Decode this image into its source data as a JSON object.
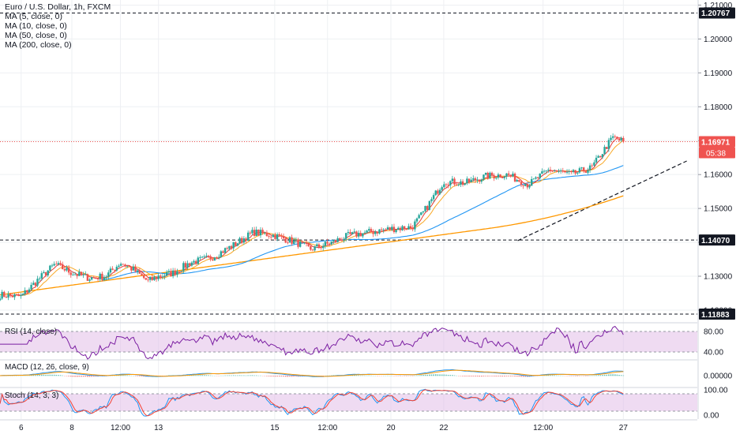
{
  "header": {
    "symbol_title": "Euro / U.S. Dollar, 1h, FXCM",
    "indicators": [
      "MA (5, close, 0)",
      "MA (10, close, 0)",
      "MA (50, close, 0)",
      "MA (200, close, 0)"
    ]
  },
  "subpanes": {
    "rsi_label": "RSI (14, close)",
    "macd_label": "MACD (12, 26, close, 9)",
    "stoch_label": "Stoch (14, 3, 3)"
  },
  "price_badges": {
    "resistance": "1.20767",
    "current": "1.16971",
    "countdown": "05:38",
    "support_mid": "1.14070",
    "support_low": "1.11883"
  },
  "colors": {
    "up": "#26a69a",
    "down": "#ef5350",
    "ma5": "#e53935",
    "ma10": "#f9a825",
    "ma50": "#2196f3",
    "ma200": "#ff9800",
    "rsi": "#7b1fa2",
    "macd_line": "#2196f3",
    "macd_signal": "#ff9800",
    "stoch_k": "#2196f3",
    "stoch_d": "#f44336",
    "band_fill": "#e1bee7",
    "current_line": "#ef5350"
  },
  "chart_data": {
    "type": "candlestick",
    "title": "Euro / U.S. Dollar, 1h, FXCM",
    "y_tick_labels": [
      "1.21000",
      "1.20000",
      "1.19000",
      "1.18000",
      "1.17000",
      "1.16000",
      "1.15000",
      "1.14000",
      "1.13000",
      "1.12000"
    ],
    "y_ticks": [
      1.21,
      1.2,
      1.19,
      1.18,
      1.17,
      1.16,
      1.15,
      1.14,
      1.13,
      1.12
    ],
    "ylim": [
      1.1165,
      1.2115
    ],
    "x_tick_labels": [
      "6",
      "8",
      "12:00",
      "13",
      "15",
      "12:00",
      "20",
      "22",
      "12:00",
      "27"
    ],
    "x_ticks": [
      0.1,
      0.34,
      0.57,
      0.75,
      1.3,
      1.55,
      1.85,
      2.1,
      2.57,
      2.95
    ],
    "xlim": [
      0,
      3.3
    ],
    "grid": true,
    "horizontal_levels": [
      1.20767,
      1.1407,
      1.11883
    ],
    "current_price": 1.16971,
    "trendline": [
      [
        2.45,
        1.1405
      ],
      [
        3.25,
        1.164
      ]
    ],
    "anchor_closes": [
      [
        0.0,
        1.1245
      ],
      [
        0.1,
        1.124
      ],
      [
        0.18,
        1.129
      ],
      [
        0.26,
        1.1335
      ],
      [
        0.34,
        1.131
      ],
      [
        0.42,
        1.1295
      ],
      [
        0.5,
        1.13
      ],
      [
        0.57,
        1.134
      ],
      [
        0.63,
        1.132
      ],
      [
        0.7,
        1.1285
      ],
      [
        0.75,
        1.13
      ],
      [
        0.82,
        1.131
      ],
      [
        0.9,
        1.134
      ],
      [
        1.0,
        1.1355
      ],
      [
        1.1,
        1.139
      ],
      [
        1.2,
        1.143
      ],
      [
        1.3,
        1.142
      ],
      [
        1.4,
        1.14
      ],
      [
        1.47,
        1.138
      ],
      [
        1.55,
        1.1395
      ],
      [
        1.65,
        1.142
      ],
      [
        1.75,
        1.143
      ],
      [
        1.85,
        1.144
      ],
      [
        1.95,
        1.1445
      ],
      [
        2.0,
        1.1485
      ],
      [
        2.1,
        1.158
      ],
      [
        2.2,
        1.1575
      ],
      [
        2.3,
        1.1595
      ],
      [
        2.4,
        1.16
      ],
      [
        2.5,
        1.157
      ],
      [
        2.6,
        1.1615
      ],
      [
        2.7,
        1.16
      ],
      [
        2.8,
        1.162
      ],
      [
        2.9,
        1.171
      ],
      [
        2.95,
        1.1697
      ]
    ],
    "series": [
      {
        "name": "MA (5, close, 0)",
        "period": 5
      },
      {
        "name": "MA (10, close, 0)",
        "period": 10
      },
      {
        "name": "MA (50, close, 0)",
        "period": 50
      },
      {
        "name": "MA (200, close, 0)",
        "period": 200
      }
    ],
    "indicators": {
      "rsi": {
        "levels": [
          80,
          40
        ],
        "level_labels": [
          "80.00",
          "40.00"
        ],
        "ylim": [
          25,
          95
        ]
      },
      "macd": {
        "level_labels": [
          "0.00000"
        ]
      },
      "stoch": {
        "levels": [
          80,
          20
        ],
        "level_labels": [
          "100.00",
          "0.00"
        ],
        "ylim": [
          -5,
          105
        ]
      }
    }
  }
}
